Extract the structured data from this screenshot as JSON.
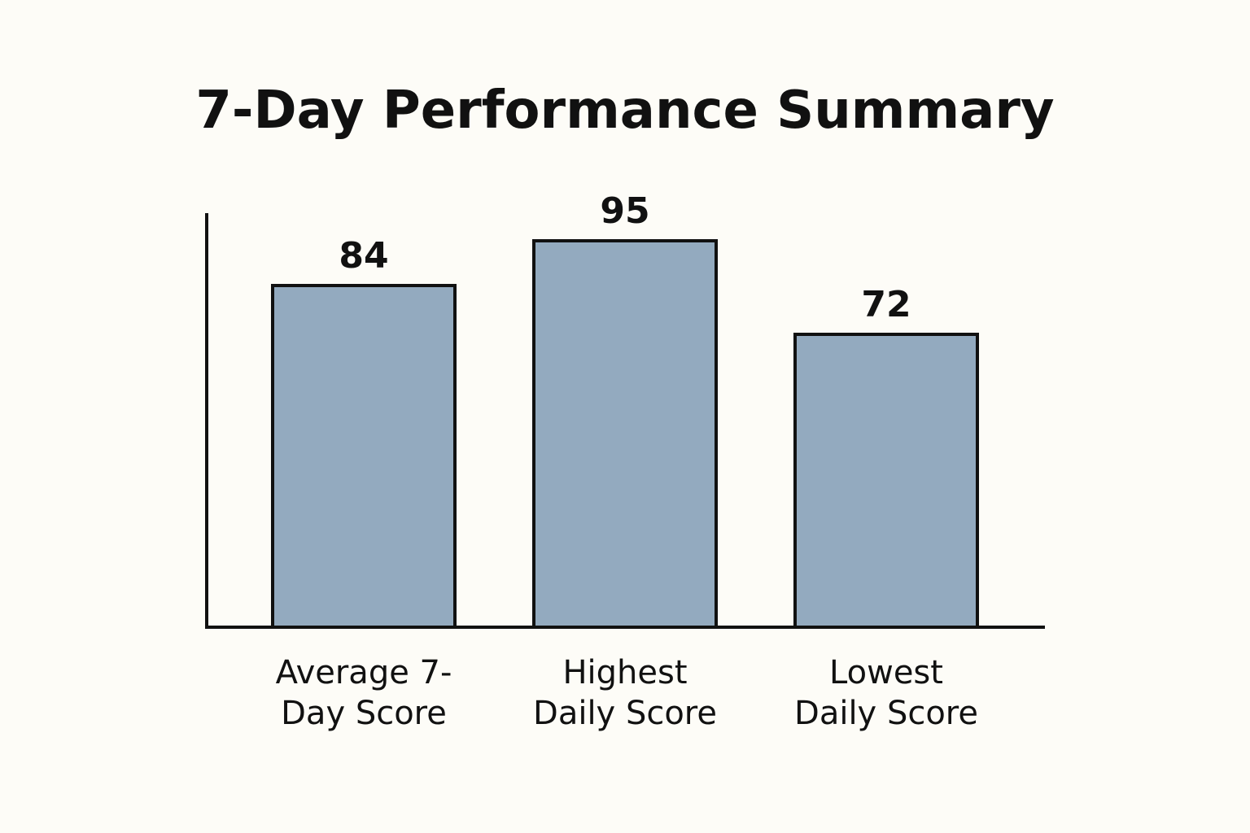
{
  "chart_data": {
    "type": "bar",
    "title": "7-Day Performance Summary",
    "categories": [
      [
        "Average 7-",
        "Day Score"
      ],
      [
        "Highest",
        "Daily Score"
      ],
      [
        "Lowest",
        "Daily Score"
      ]
    ],
    "values": [
      84,
      95,
      72
    ],
    "data_labels": [
      "84",
      "95",
      "72"
    ],
    "xlabel": "",
    "ylabel": "",
    "ylim": [
      0,
      100
    ],
    "grid": false,
    "legend": "none",
    "bar_color": "#93aabf",
    "bar_edge_color": "#111111"
  }
}
